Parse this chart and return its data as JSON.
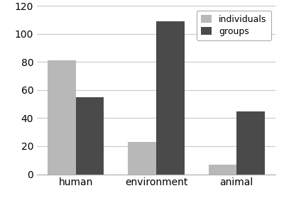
{
  "categories": [
    "human",
    "environment",
    "animal"
  ],
  "individuals": [
    81,
    23,
    7
  ],
  "groups": [
    55,
    109,
    45
  ],
  "bar_color_individuals": "#b8b8b8",
  "bar_color_groups": "#4a4a4a",
  "legend_labels": [
    "individuals",
    "groups"
  ],
  "ylim": [
    0,
    120
  ],
  "yticks": [
    0,
    20,
    40,
    60,
    80,
    100,
    120
  ],
  "bar_width": 0.35,
  "background_color": "#ffffff",
  "grid_color": "#c8c8c8",
  "legend_edgecolor": "#aaaaaa",
  "spine_color": "#aaaaaa",
  "figsize": [
    4.0,
    2.79
  ],
  "dpi": 100
}
